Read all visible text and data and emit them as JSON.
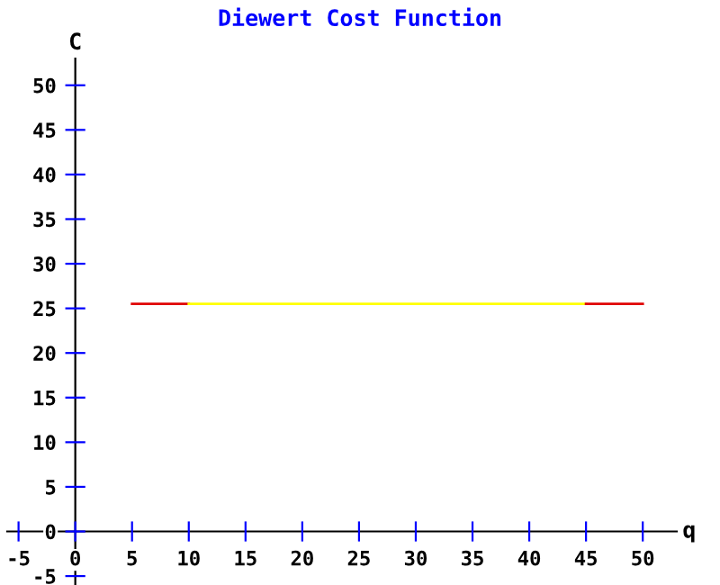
{
  "chart_data": {
    "type": "line",
    "title": "Diewert Cost Function",
    "xlabel": "q",
    "ylabel": "C",
    "xlim": [
      -6,
      53
    ],
    "ylim": [
      -6,
      53
    ],
    "xticks": [
      -5,
      0,
      5,
      10,
      15,
      20,
      25,
      30,
      35,
      40,
      45,
      50
    ],
    "yticks": [
      -5,
      0,
      5,
      10,
      15,
      20,
      25,
      30,
      35,
      40,
      45,
      50
    ],
    "series": [
      {
        "color": "#e00000",
        "x": [
          5,
          10
        ],
        "values": [
          25.5,
          25.5
        ]
      },
      {
        "color": "#ffff00",
        "x": [
          10,
          45
        ],
        "values": [
          25.5,
          25.5
        ]
      },
      {
        "color": "#e00000",
        "x": [
          45,
          50
        ],
        "values": [
          25.5,
          25.5
        ]
      }
    ],
    "grid": false,
    "marker": "none",
    "line_style": "solid"
  }
}
